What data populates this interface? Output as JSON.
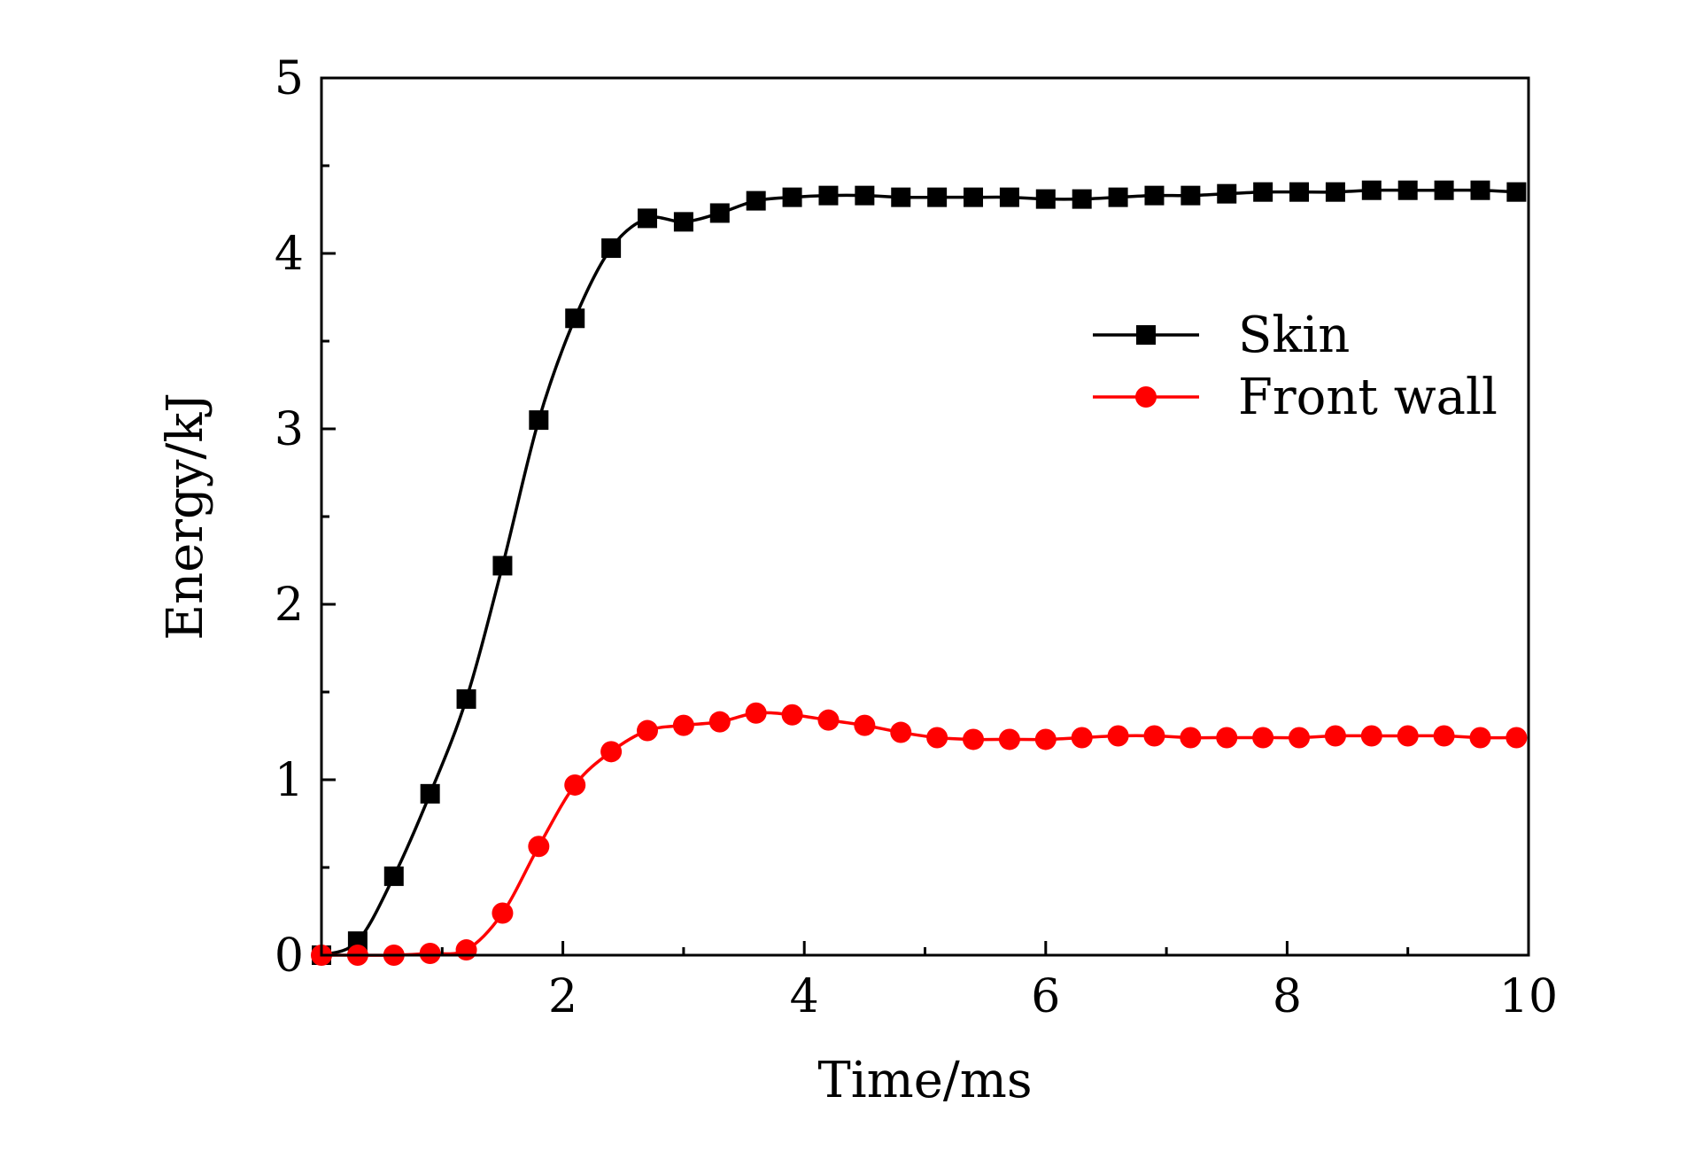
{
  "chart_data": {
    "type": "line",
    "title": "",
    "xlabel": "Time/ms",
    "ylabel": "Energy/kJ",
    "xlim": [
      0,
      10
    ],
    "ylim": [
      0,
      5
    ],
    "xticks": [
      2,
      4,
      6,
      8,
      10
    ],
    "yticks": [
      0,
      1,
      2,
      3,
      4,
      5
    ],
    "grid": false,
    "legend_position": "right-middle",
    "series": [
      {
        "name": "Skin",
        "color": "#000000",
        "marker": "square",
        "x": [
          0,
          0.3,
          0.6,
          0.9,
          1.2,
          1.5,
          1.8,
          2.1,
          2.4,
          2.7,
          3.0,
          3.3,
          3.6,
          3.9,
          4.2,
          4.5,
          4.8,
          5.1,
          5.4,
          5.7,
          6.0,
          6.3,
          6.6,
          6.9,
          7.2,
          7.5,
          7.8,
          8.1,
          8.4,
          8.7,
          9.0,
          9.3,
          9.6,
          9.9
        ],
        "y": [
          0,
          0.08,
          0.45,
          0.92,
          1.46,
          2.22,
          3.05,
          3.63,
          4.03,
          4.2,
          4.18,
          4.23,
          4.3,
          4.32,
          4.33,
          4.33,
          4.32,
          4.32,
          4.32,
          4.32,
          4.31,
          4.31,
          4.32,
          4.33,
          4.33,
          4.34,
          4.35,
          4.35,
          4.35,
          4.36,
          4.36,
          4.36,
          4.36,
          4.35
        ]
      },
      {
        "name": "Front wall",
        "color": "#ff0000",
        "marker": "circle",
        "x": [
          0,
          0.3,
          0.6,
          0.9,
          1.2,
          1.5,
          1.8,
          2.1,
          2.4,
          2.7,
          3.0,
          3.3,
          3.6,
          3.9,
          4.2,
          4.5,
          4.8,
          5.1,
          5.4,
          5.7,
          6.0,
          6.3,
          6.6,
          6.9,
          7.2,
          7.5,
          7.8,
          8.1,
          8.4,
          8.7,
          9.0,
          9.3,
          9.6,
          9.9
        ],
        "y": [
          0,
          0,
          0,
          0.01,
          0.03,
          0.24,
          0.62,
          0.97,
          1.16,
          1.28,
          1.31,
          1.33,
          1.38,
          1.37,
          1.34,
          1.31,
          1.27,
          1.24,
          1.23,
          1.23,
          1.23,
          1.24,
          1.25,
          1.25,
          1.24,
          1.24,
          1.24,
          1.24,
          1.25,
          1.25,
          1.25,
          1.25,
          1.24,
          1.24
        ]
      }
    ]
  }
}
